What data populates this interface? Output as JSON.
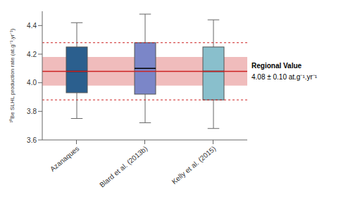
{
  "chart_data": {
    "type": "box",
    "ylabel": "¹⁰Be SLHL production rate (at.g⁻¹.yr⁻¹)",
    "categories": [
      "Azanaques",
      "Blard et al. (2013b)",
      "Kelly et al. (2015)"
    ],
    "boxes": [
      {
        "q1": 3.93,
        "median": 4.08,
        "q3": 4.25,
        "whislo": 3.75,
        "whishi": 4.42,
        "color": "#2b5f8e"
      },
      {
        "q1": 3.92,
        "median": 4.1,
        "q3": 4.28,
        "whislo": 3.72,
        "whishi": 4.48,
        "color": "#7b86c8"
      },
      {
        "q1": 3.88,
        "median": 4.08,
        "q3": 4.25,
        "whislo": 3.68,
        "whishi": 4.44,
        "color": "#89bfcc"
      }
    ],
    "regional": {
      "value": 4.08,
      "sigma": 0.1,
      "two_sigma": 0.2,
      "color": "#cc2222"
    },
    "annotations": [
      "Regional Value",
      "4.08 ± 0.10 at.g⁻¹.yr⁻¹"
    ],
    "ylim": [
      3.6,
      4.5
    ],
    "yticks": [
      3.6,
      3.8,
      {
        "value": 4.0,
        "label": "4.0"
      },
      4.2,
      4.4
    ],
    "grid": false
  }
}
